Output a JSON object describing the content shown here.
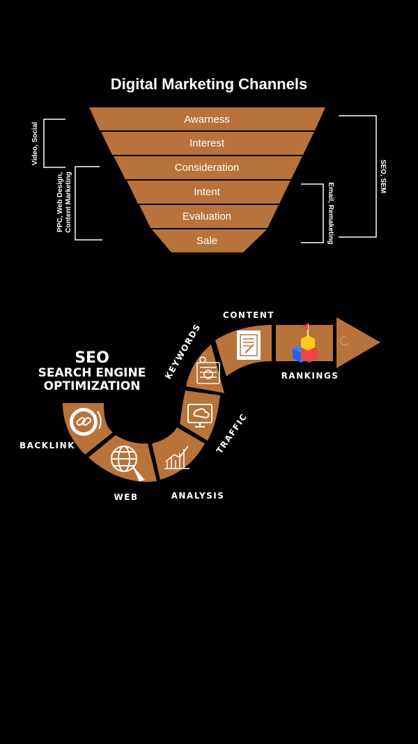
{
  "funnel": {
    "title": "Digital Marketing Channels",
    "stages": [
      "Awarness",
      "Interest",
      "Consideration",
      "Intent",
      "Evaluation",
      "Sale"
    ],
    "brackets": {
      "video_social": "Video, Social",
      "ppc": [
        "PPC, Web Design,",
        "Content Marketing"
      ],
      "seo_sem": "SEO, SEM",
      "email": "Email, Remaketing"
    },
    "colors": {
      "stage": "#B8733A",
      "divider": "#1a0f06",
      "text": "#ffffff"
    }
  },
  "seo": {
    "heading": [
      "SEO",
      "SEARCH ENGINE",
      "OPTIMIZATION"
    ],
    "labels": {
      "backlink": "BACKLINK",
      "web": "WEB",
      "analysis": "ANALYSIS",
      "traffic": "TRAFFIC",
      "keywords": "KEYWORDS",
      "content": "CONTENT",
      "rankings": "RANKINGS"
    },
    "icons": [
      "backlink-icon",
      "web-globe-icon",
      "analysis-chart-icon",
      "traffic-monitor-icon",
      "keywords-list-icon",
      "content-document-icon",
      "rankings-blocks-icon",
      "arrowhead-icon"
    ],
    "colors": {
      "band": "#B8733A",
      "icon": "#ffffff"
    }
  }
}
